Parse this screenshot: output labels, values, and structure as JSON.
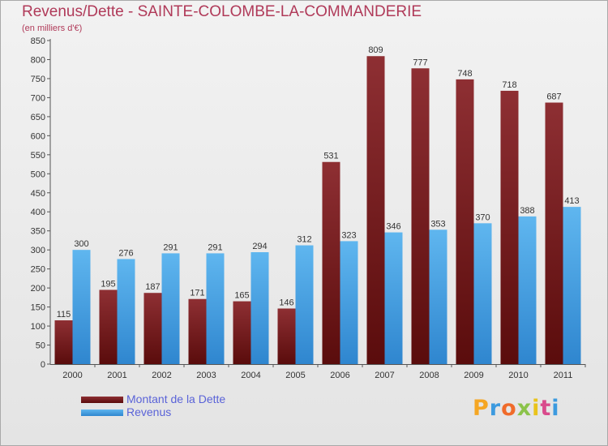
{
  "chart_data": {
    "type": "bar",
    "title": "Revenus/Dette - SAINTE-COLOMBE-LA-COMMANDERIE",
    "subtitle": "(en milliers d'€)",
    "categories": [
      "2000",
      "2001",
      "2002",
      "2003",
      "2004",
      "2005",
      "2006",
      "2007",
      "2008",
      "2009",
      "2010",
      "2011"
    ],
    "series": [
      {
        "name": "Montant de la Dette",
        "values": [
          115,
          195,
          187,
          171,
          165,
          146,
          531,
          809,
          777,
          748,
          718,
          687
        ],
        "color": "#7a1a1a"
      },
      {
        "name": "Revenus",
        "values": [
          300,
          276,
          291,
          291,
          294,
          312,
          323,
          346,
          353,
          370,
          388,
          413
        ],
        "color": "#4ea8e6"
      }
    ],
    "ylim": [
      0,
      850
    ],
    "yticks": [
      0,
      50,
      100,
      150,
      200,
      250,
      300,
      350,
      400,
      450,
      500,
      550,
      600,
      650,
      700,
      750,
      800,
      850
    ],
    "grid": false,
    "legend_position": "bottom-left"
  },
  "brand": {
    "name": "Proxiti",
    "letters": [
      "P",
      "r",
      "o",
      "x",
      "i",
      "t",
      "i"
    ]
  }
}
